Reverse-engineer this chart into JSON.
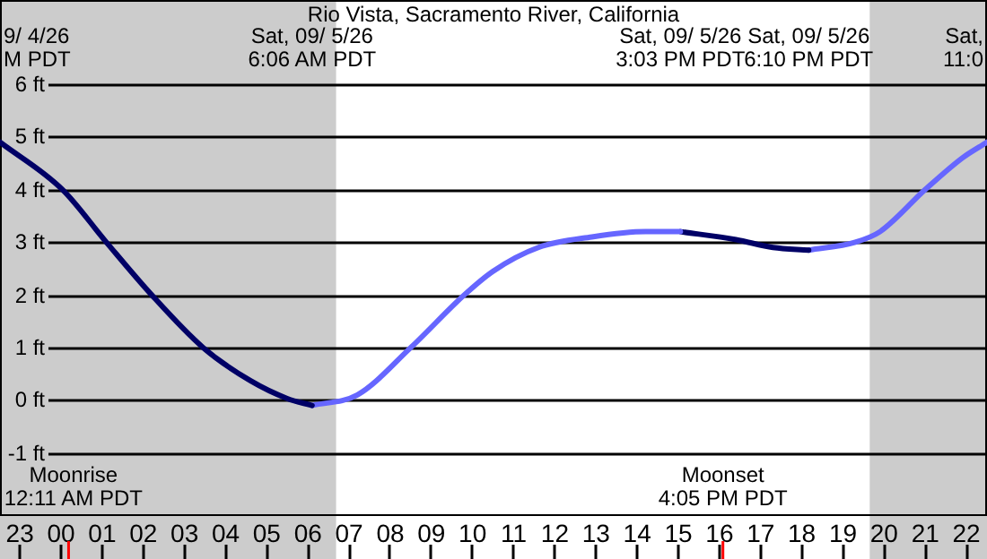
{
  "chart_data": {
    "type": "line",
    "title": "Rio Vista, Sacramento River, California",
    "xlim": [
      "--09-04T22:31",
      "--09-05T22:30"
    ],
    "ylim": [
      -2.2,
      7.6
    ],
    "xticks": [
      {
        "value": "--09-04T23:00",
        "label": "23"
      },
      {
        "value": "--09-05T00:00",
        "label": "00"
      },
      {
        "value": "--09-05T01:00",
        "label": "01"
      },
      {
        "value": "--09-05T02:00",
        "label": "02"
      },
      {
        "value": "--09-05T03:00",
        "label": "03"
      },
      {
        "value": "--09-05T04:00",
        "label": "04"
      },
      {
        "value": "--09-05T05:00",
        "label": "05"
      },
      {
        "value": "--09-05T06:00",
        "label": "06"
      },
      {
        "value": "--09-05T07:00",
        "label": "07"
      },
      {
        "value": "--09-05T08:00",
        "label": "08"
      },
      {
        "value": "--09-05T09:00",
        "label": "09"
      },
      {
        "value": "--09-05T10:00",
        "label": "10"
      },
      {
        "value": "--09-05T11:00",
        "label": "11"
      },
      {
        "value": "--09-05T12:00",
        "label": "12"
      },
      {
        "value": "--09-05T13:00",
        "label": "13"
      },
      {
        "value": "--09-05T14:00",
        "label": "14"
      },
      {
        "value": "--09-05T15:00",
        "label": "15"
      },
      {
        "value": "--09-05T16:00",
        "label": "16"
      },
      {
        "value": "--09-05T17:00",
        "label": "17"
      },
      {
        "value": "--09-05T18:00",
        "label": "18"
      },
      {
        "value": "--09-05T19:00",
        "label": "19"
      },
      {
        "value": "--09-05T20:00",
        "label": "20"
      },
      {
        "value": "--09-05T21:00",
        "label": "21"
      },
      {
        "value": "--09-05T22:00",
        "label": "22"
      }
    ],
    "yticks": [
      {
        "value": -1,
        "label": "-1 ft"
      },
      {
        "value": 0,
        "label": "0 ft"
      },
      {
        "value": 1,
        "label": "1 ft"
      },
      {
        "value": 2,
        "label": "2 ft"
      },
      {
        "value": 3,
        "label": "3 ft"
      },
      {
        "value": 4,
        "label": "4 ft"
      },
      {
        "value": 5,
        "label": "5 ft"
      },
      {
        "value": 6,
        "label": "6 ft"
      }
    ],
    "series": [
      {
        "color": "#000066",
        "x": [
          "--09-04T22:31",
          "--09-05T00:02",
          "--09-05T01:06",
          "--09-05T02:12",
          "--09-05T03:27",
          "--09-05T04:36",
          "--09-05T05:30",
          "--09-05T06:06"
        ],
        "values": [
          4.9,
          4.0,
          3.0,
          2.0,
          1.0,
          0.37,
          0.03,
          -0.1
        ]
      },
      {
        "color": "#6666ff",
        "x": [
          "--09-05T06:06",
          "--09-05T07:12",
          "--09-05T08:30",
          "--09-05T09:48",
          "--09-05T10:30",
          "--09-05T11:36",
          "--09-05T12:54",
          "--09-05T14:12",
          "--09-05T15:03"
        ],
        "values": [
          -0.1,
          0.1,
          1.0,
          2.0,
          2.45,
          2.9,
          3.1,
          3.2,
          3.2
        ]
      },
      {
        "color": "#000066",
        "x": [
          "--09-05T15:03",
          "--09-05T16:24",
          "--09-05T17:18",
          "--09-05T18:10"
        ],
        "values": [
          3.2,
          3.05,
          2.9,
          2.85
        ]
      },
      {
        "color": "#6666ff",
        "x": [
          "--09-05T18:10",
          "--09-05T19:18",
          "--09-05T19:54",
          "--09-05T21:00",
          "--09-05T21:54",
          "--09-05T22:30"
        ],
        "values": [
          2.85,
          3.0,
          3.2,
          4.0,
          4.6,
          4.9
        ]
      }
    ],
    "bands": [
      {
        "axis": "x",
        "from": "--09-04T22:31",
        "to": "--09-05T06:41",
        "color": "#cccccc"
      },
      {
        "axis": "x",
        "from": "--09-05T19:39",
        "to": "--09-05T22:30",
        "color": "#cccccc"
      }
    ],
    "ref_lines": [
      {
        "axis": "x",
        "value": "--09-05T00:11",
        "label": "Moonrise\n12:11 AM PDT",
        "color": "#ff0000"
      },
      {
        "axis": "x",
        "value": "--09-05T16:05",
        "label": "Moonset\n4:05 PM PDT",
        "color": "#ff0000"
      }
    ],
    "annotations": [
      "9/ 4/26\nM PDT",
      "Sat,\n11:0",
      "Sat, 09/ 5/26\n6:06 AM PDT",
      "Sat, 09/ 5/26\n3:03 PM PDT",
      "Sat, 09/ 5/26\n6:10 PM PDT"
    ],
    "grid": "y",
    "legend": false,
    "marker": "none",
    "line_style": "solid"
  }
}
